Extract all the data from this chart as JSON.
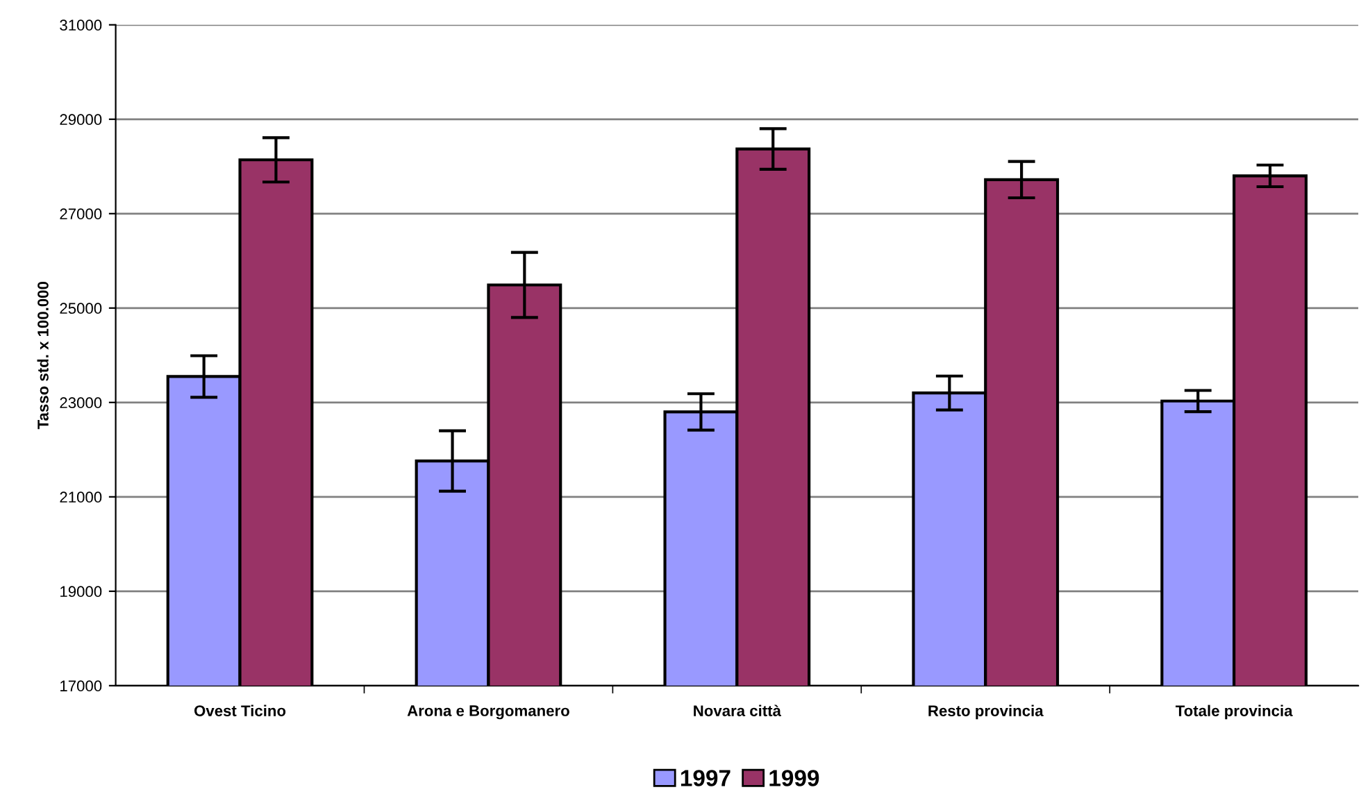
{
  "chart_data": {
    "type": "bar",
    "ylabel": "Tasso std. x 100.000",
    "categories": [
      "Ovest Ticino",
      "Arona e Borgomanero",
      "Novara città",
      "Resto provincia",
      "Totale provincia"
    ],
    "series": [
      {
        "name": "1997",
        "color": "#9999ff",
        "values": [
          23550,
          21760,
          22800,
          23200,
          23030
        ],
        "errors": [
          440,
          640,
          385,
          360,
          225
        ]
      },
      {
        "name": "1999",
        "color": "#993366",
        "values": [
          28140,
          25490,
          28370,
          27720,
          27800
        ],
        "errors": [
          470,
          690,
          430,
          385,
          230
        ]
      }
    ],
    "ylim": [
      17000,
      31000
    ],
    "yticks": [
      17000,
      19000,
      21000,
      23000,
      25000,
      27000,
      29000,
      31000
    ],
    "grid": "y",
    "legend": "bottom"
  }
}
